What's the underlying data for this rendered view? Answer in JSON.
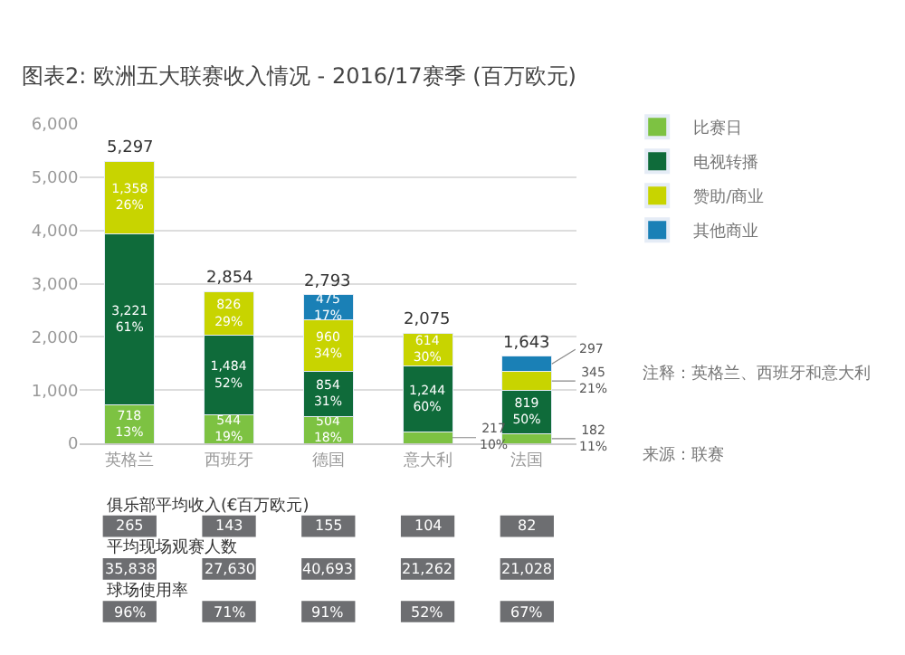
{
  "chart_data": [
    {
      "type": "bar",
      "title": "图表2: 欧洲五大联赛收入情况 - 2016/17赛季 (百万欧元)",
      "stacked": true,
      "categories": [
        "英格兰",
        "西班牙",
        "德国",
        "意大利",
        "法国"
      ],
      "series": [
        {
          "name": "比赛日",
          "color": "#7dc242",
          "values": [
            718,
            544,
            504,
            217,
            182
          ],
          "value_labels": [
            "718\n13%",
            "544\n19%",
            "504\n18%",
            "217\n10%",
            "182\n11%"
          ]
        },
        {
          "name": "电视转播",
          "color": "#0f6b3a",
          "values": [
            3221,
            1484,
            854,
            1244,
            819
          ],
          "value_labels": [
            "3,221\n61%",
            "1,484\n52%",
            "854\n31%",
            "1,244\n60%",
            "819\n50%"
          ]
        },
        {
          "name": "赞助/商业",
          "color": "#c8d400",
          "values": [
            1358,
            826,
            960,
            614,
            345
          ],
          "value_labels": [
            "1,358\n26%",
            "826\n29%",
            "960\n34%",
            "614\n30%",
            "345\n21%"
          ]
        },
        {
          "name": "其他商业",
          "color": "#1a80b6",
          "values": [
            null,
            null,
            475,
            null,
            297
          ],
          "value_labels": [
            null,
            null,
            "475\n17%",
            null,
            "297"
          ]
        }
      ],
      "totals": [
        "5,297",
        "2,854",
        "2,793",
        "2,075",
        "1,643"
      ],
      "ylim": [
        0,
        6000
      ],
      "yticks": [
        0,
        {
          "value": 1000,
          "label": "1,000"
        },
        {
          "value": 2000,
          "label": "2,000"
        },
        {
          "value": 3000,
          "label": "3,000"
        },
        {
          "value": 4000,
          "label": "4,000"
        },
        {
          "value": 5000,
          "label": "5,000"
        },
        {
          "value": 6000,
          "label": "6,000"
        }
      ],
      "grid": "y",
      "legend": "right",
      "annotations": [
        "注释：英格兰、西班牙和意大利",
        "来源：联赛"
      ]
    },
    {
      "type": "other",
      "annotations": [
        "俱乐部平均收入(€百万欧元)",
        "265",
        "143",
        "155",
        "104",
        "82",
        "平均现场观赛人数",
        "35,838",
        "27,630",
        "40,693",
        "21,262",
        "21,028",
        "球场使用率",
        "96%",
        "71%",
        "91%",
        "52%",
        "67%"
      ]
    }
  ]
}
